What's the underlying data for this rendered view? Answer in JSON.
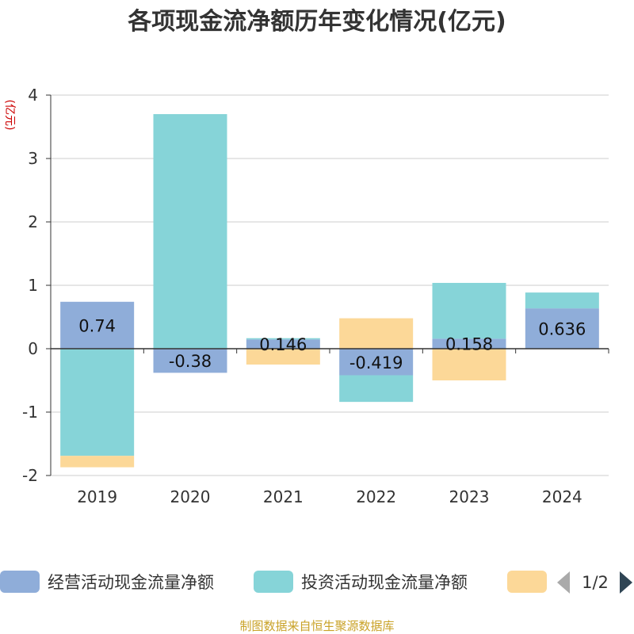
{
  "chart_data": {
    "type": "bar",
    "stacked": true,
    "title": "各项现金流净额历年变化情况(亿元)",
    "ylabel": "(亿元)",
    "categories": [
      "2019",
      "2020",
      "2021",
      "2022",
      "2023",
      "2024"
    ],
    "ylim": [
      -2,
      4
    ],
    "yticks": [
      -2,
      -1,
      0,
      1,
      2,
      3,
      4
    ],
    "grid": true,
    "legend_position": "bottom",
    "series": [
      {
        "name": "经营活动现金流量净额",
        "color": "#8fadd9",
        "values": [
          0.74,
          -0.38,
          0.146,
          -0.419,
          0.158,
          0.636
        ],
        "labels": [
          "0.74",
          "-0.38",
          "0.146",
          "-0.419",
          "0.158",
          "0.636"
        ]
      },
      {
        "name": "投资活动现金流量净额",
        "color": "#86d4d8",
        "values": [
          -1.69,
          3.7,
          0.02,
          -0.42,
          0.88,
          0.25
        ]
      },
      {
        "name": "",
        "color": "#fcd898",
        "values": [
          -0.18,
          0.0,
          -0.25,
          0.48,
          -0.5,
          0.0
        ]
      }
    ]
  },
  "legend": {
    "page": "1/2"
  },
  "source_text": "制图数据来自恒生聚源数据库"
}
